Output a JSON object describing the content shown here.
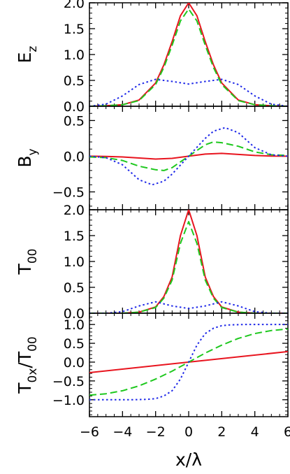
{
  "chart_data": [
    {
      "type": "line",
      "ylabel": "E",
      "ylabel_sub": "z",
      "xlim": [
        -6,
        6
      ],
      "ylim": [
        0,
        2.0
      ],
      "y_ticks": [
        0.0,
        0.5,
        1.0,
        1.5,
        2.0
      ],
      "y_tick_labels": [
        "0.0",
        "0.5",
        "1.0",
        "1.5",
        "2.0"
      ],
      "series": [
        {
          "style": "solid",
          "color": "#e8141e",
          "x": [
            -6,
            -5,
            -4,
            -3,
            -2,
            -1.5,
            -1,
            -0.5,
            0,
            0.5,
            1,
            1.5,
            2,
            3,
            4,
            5,
            6
          ],
          "y": [
            0,
            0.01,
            0.03,
            0.12,
            0.45,
            0.8,
            1.25,
            1.75,
            2.0,
            1.75,
            1.25,
            0.8,
            0.45,
            0.12,
            0.03,
            0.01,
            0
          ]
        },
        {
          "style": "dashed",
          "color": "#1ec81e",
          "x": [
            -6,
            -5,
            -4,
            -3,
            -2,
            -1.5,
            -1,
            -0.5,
            0,
            0.5,
            1,
            1.5,
            2,
            3,
            4,
            5,
            6
          ],
          "y": [
            0,
            0.01,
            0.03,
            0.11,
            0.42,
            0.75,
            1.18,
            1.65,
            1.88,
            1.65,
            1.18,
            0.75,
            0.42,
            0.11,
            0.03,
            0.01,
            0
          ]
        },
        {
          "style": "dotted",
          "color": "#1e28e8",
          "x": [
            -6,
            -5,
            -4,
            -3,
            -2,
            -1,
            0,
            1,
            2,
            3,
            4,
            5,
            6
          ],
          "y": [
            0,
            0.04,
            0.2,
            0.42,
            0.52,
            0.48,
            0.43,
            0.48,
            0.52,
            0.42,
            0.2,
            0.04,
            0
          ]
        }
      ]
    },
    {
      "type": "line",
      "ylabel": "B",
      "ylabel_sub": "y",
      "xlim": [
        -6,
        6
      ],
      "ylim": [
        -0.75,
        0.7
      ],
      "y_ticks": [
        -0.5,
        0.0,
        0.5
      ],
      "y_tick_labels": [
        "−0.5",
        "0.0",
        "0.5"
      ],
      "series": [
        {
          "style": "solid",
          "color": "#e8141e",
          "x": [
            -6,
            -5,
            -4,
            -3,
            -2,
            -1,
            0,
            1,
            2,
            3,
            4,
            5,
            6
          ],
          "y": [
            0,
            -0.002,
            -0.01,
            -0.025,
            -0.04,
            -0.03,
            0,
            0.03,
            0.04,
            0.025,
            0.01,
            0.002,
            0
          ]
        },
        {
          "style": "dashed",
          "color": "#1ec81e",
          "x": [
            -6,
            -5,
            -4,
            -3,
            -2,
            -1.5,
            -1,
            0,
            1,
            1.5,
            2,
            3,
            4,
            5,
            6
          ],
          "y": [
            -0.01,
            -0.02,
            -0.06,
            -0.14,
            -0.19,
            -0.2,
            -0.16,
            0,
            0.16,
            0.2,
            0.19,
            0.14,
            0.06,
            0.02,
            0.01
          ]
        },
        {
          "style": "dotted",
          "color": "#1e28e8",
          "x": [
            -6,
            -5,
            -4,
            -3,
            -2.2,
            -1.5,
            -1,
            0,
            1,
            1.5,
            2.2,
            3,
            4,
            5,
            6
          ],
          "y": [
            0,
            -0.02,
            -0.12,
            -0.33,
            -0.4,
            -0.35,
            -0.25,
            0,
            0.25,
            0.35,
            0.4,
            0.33,
            0.12,
            0.02,
            0
          ]
        }
      ]
    },
    {
      "type": "line",
      "ylabel": "T",
      "ylabel_sub": "00",
      "xlim": [
        -6,
        6
      ],
      "ylim": [
        0,
        2.0
      ],
      "y_ticks": [
        0.0,
        0.5,
        1.0,
        1.5,
        2.0
      ],
      "y_tick_labels": [
        "0.0",
        "0.5",
        "1.0",
        "1.5",
        "2.0"
      ],
      "series": [
        {
          "style": "solid",
          "color": "#e8141e",
          "x": [
            -6,
            -4,
            -3,
            -2,
            -1.5,
            -1,
            -0.5,
            0,
            0.5,
            1,
            1.5,
            2,
            3,
            4,
            6
          ],
          "y": [
            0,
            0,
            0.02,
            0.12,
            0.32,
            0.7,
            1.5,
            2.0,
            1.5,
            0.7,
            0.32,
            0.12,
            0.02,
            0,
            0
          ]
        },
        {
          "style": "dashed",
          "color": "#1ec81e",
          "x": [
            -6,
            -4,
            -3,
            -2,
            -1.5,
            -1,
            -0.5,
            0,
            0.5,
            1,
            1.5,
            2,
            3,
            4,
            6
          ],
          "y": [
            0,
            0,
            0.02,
            0.11,
            0.29,
            0.64,
            1.35,
            1.77,
            1.35,
            0.64,
            0.29,
            0.11,
            0.02,
            0,
            0
          ]
        },
        {
          "style": "dotted",
          "color": "#1e28e8",
          "x": [
            -6,
            -5,
            -4,
            -3,
            -2,
            -1,
            0,
            1,
            2,
            3,
            4,
            5,
            6
          ],
          "y": [
            0,
            0,
            0.03,
            0.14,
            0.22,
            0.14,
            0.09,
            0.14,
            0.22,
            0.14,
            0.03,
            0,
            0
          ]
        }
      ]
    },
    {
      "type": "line",
      "ylabel": "T",
      "ylabel_sub": "0x",
      "ylabel_suffix": "/T",
      "ylabel_suffix_sub": "00",
      "xlabel": "x/λ",
      "xlim": [
        -6,
        6
      ],
      "ylim": [
        -1.45,
        1.3
      ],
      "x_ticks": [
        -6,
        -4,
        -2,
        0,
        2,
        4,
        6
      ],
      "x_tick_labels": [
        "−6",
        "−4",
        "−2",
        "0",
        "2",
        "4",
        "6"
      ],
      "y_ticks": [
        -1.0,
        -0.5,
        0.0,
        0.5,
        1.0
      ],
      "y_tick_labels": [
        "−1.0",
        "−0.5",
        "0.0",
        "0.5",
        "1.0"
      ],
      "series": [
        {
          "style": "solid",
          "color": "#e8141e",
          "x": [
            -6,
            6
          ],
          "y": [
            -0.28,
            0.28
          ]
        },
        {
          "style": "dashed",
          "color": "#1ec81e",
          "x": [
            -6,
            -5,
            -4,
            -3,
            -2,
            -1,
            0,
            1,
            2,
            3,
            4,
            5,
            6
          ],
          "y": [
            -0.88,
            -0.84,
            -0.76,
            -0.63,
            -0.45,
            -0.24,
            0,
            0.24,
            0.45,
            0.63,
            0.76,
            0.84,
            0.88
          ]
        },
        {
          "style": "dotted",
          "color": "#1e28e8",
          "x": [
            -6,
            -3.5,
            -2.5,
            -2,
            -1.5,
            -1,
            -0.5,
            0,
            0.5,
            1,
            1.5,
            2,
            2.5,
            3.5,
            6
          ],
          "y": [
            -1.0,
            -1.0,
            -0.99,
            -0.97,
            -0.9,
            -0.76,
            -0.45,
            0,
            0.45,
            0.76,
            0.9,
            0.97,
            0.99,
            1.0,
            1.0
          ]
        }
      ]
    }
  ]
}
